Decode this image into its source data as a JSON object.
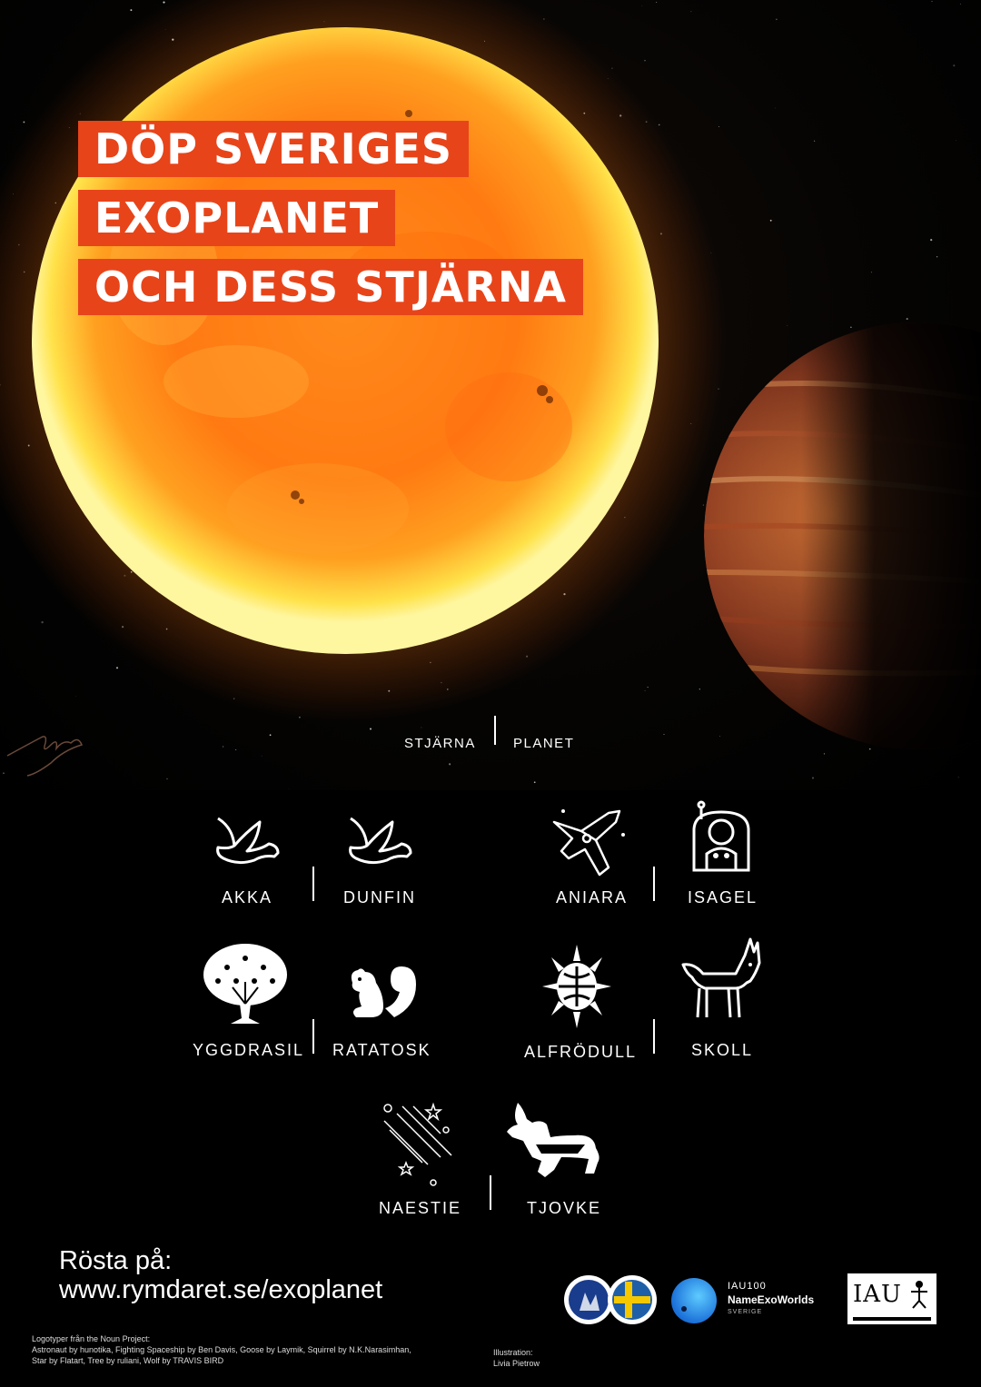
{
  "headline": {
    "line1": "DÖP SVERIGES",
    "line2": "EXOPLANET",
    "line3": "OCH DESS STJÄRNA"
  },
  "categories": {
    "star": "STJÄRNA",
    "planet": "PLANET"
  },
  "pairs": [
    {
      "star": "AKKA",
      "planet": "DUNFIN"
    },
    {
      "star": "ANIARA",
      "planet": "ISAGEL"
    },
    {
      "star": "YGGDRASIL",
      "planet": "RATATOSK"
    },
    {
      "star": "ALFRÖDULL",
      "planet": "SKOLL"
    },
    {
      "star": "NAESTIE",
      "planet": "TJOVKE"
    }
  ],
  "vote": {
    "title": "Rösta på:",
    "url": "www.rymdaret.se/exoplanet"
  },
  "credits": {
    "heading": "Logotyper från the Noun Project:",
    "line1": "Astronaut by hunotika, Fighting Spaceship by Ben Davis, Goose by Laymik, Squirrel by N.K.Narasimhan,",
    "line2": "Star by Flatart, Tree by ruliani, Wolf by TRAVIS BIRD",
    "illustration_label": "Illustration:",
    "illustration_name": "Livia Pietrow"
  },
  "logos": {
    "iau100": "IAU100",
    "nameexoworlds": "NameExoWorlds",
    "sverige": "SVERIGE",
    "iau": "IAU"
  },
  "colors": {
    "accent": "#e8441a",
    "background": "#000000",
    "text": "#ffffff"
  },
  "icons": {
    "akka": "goose-icon",
    "dunfin": "goose-icon",
    "aniara": "spaceship-icon",
    "isagel": "astronaut-icon",
    "yggdrasil": "tree-icon",
    "ratatosk": "squirrel-icon",
    "alfrodull": "sun-icon",
    "skoll": "wolf-icon",
    "naestie": "shooting-stars-icon",
    "tjovke": "reindeer-icon"
  }
}
